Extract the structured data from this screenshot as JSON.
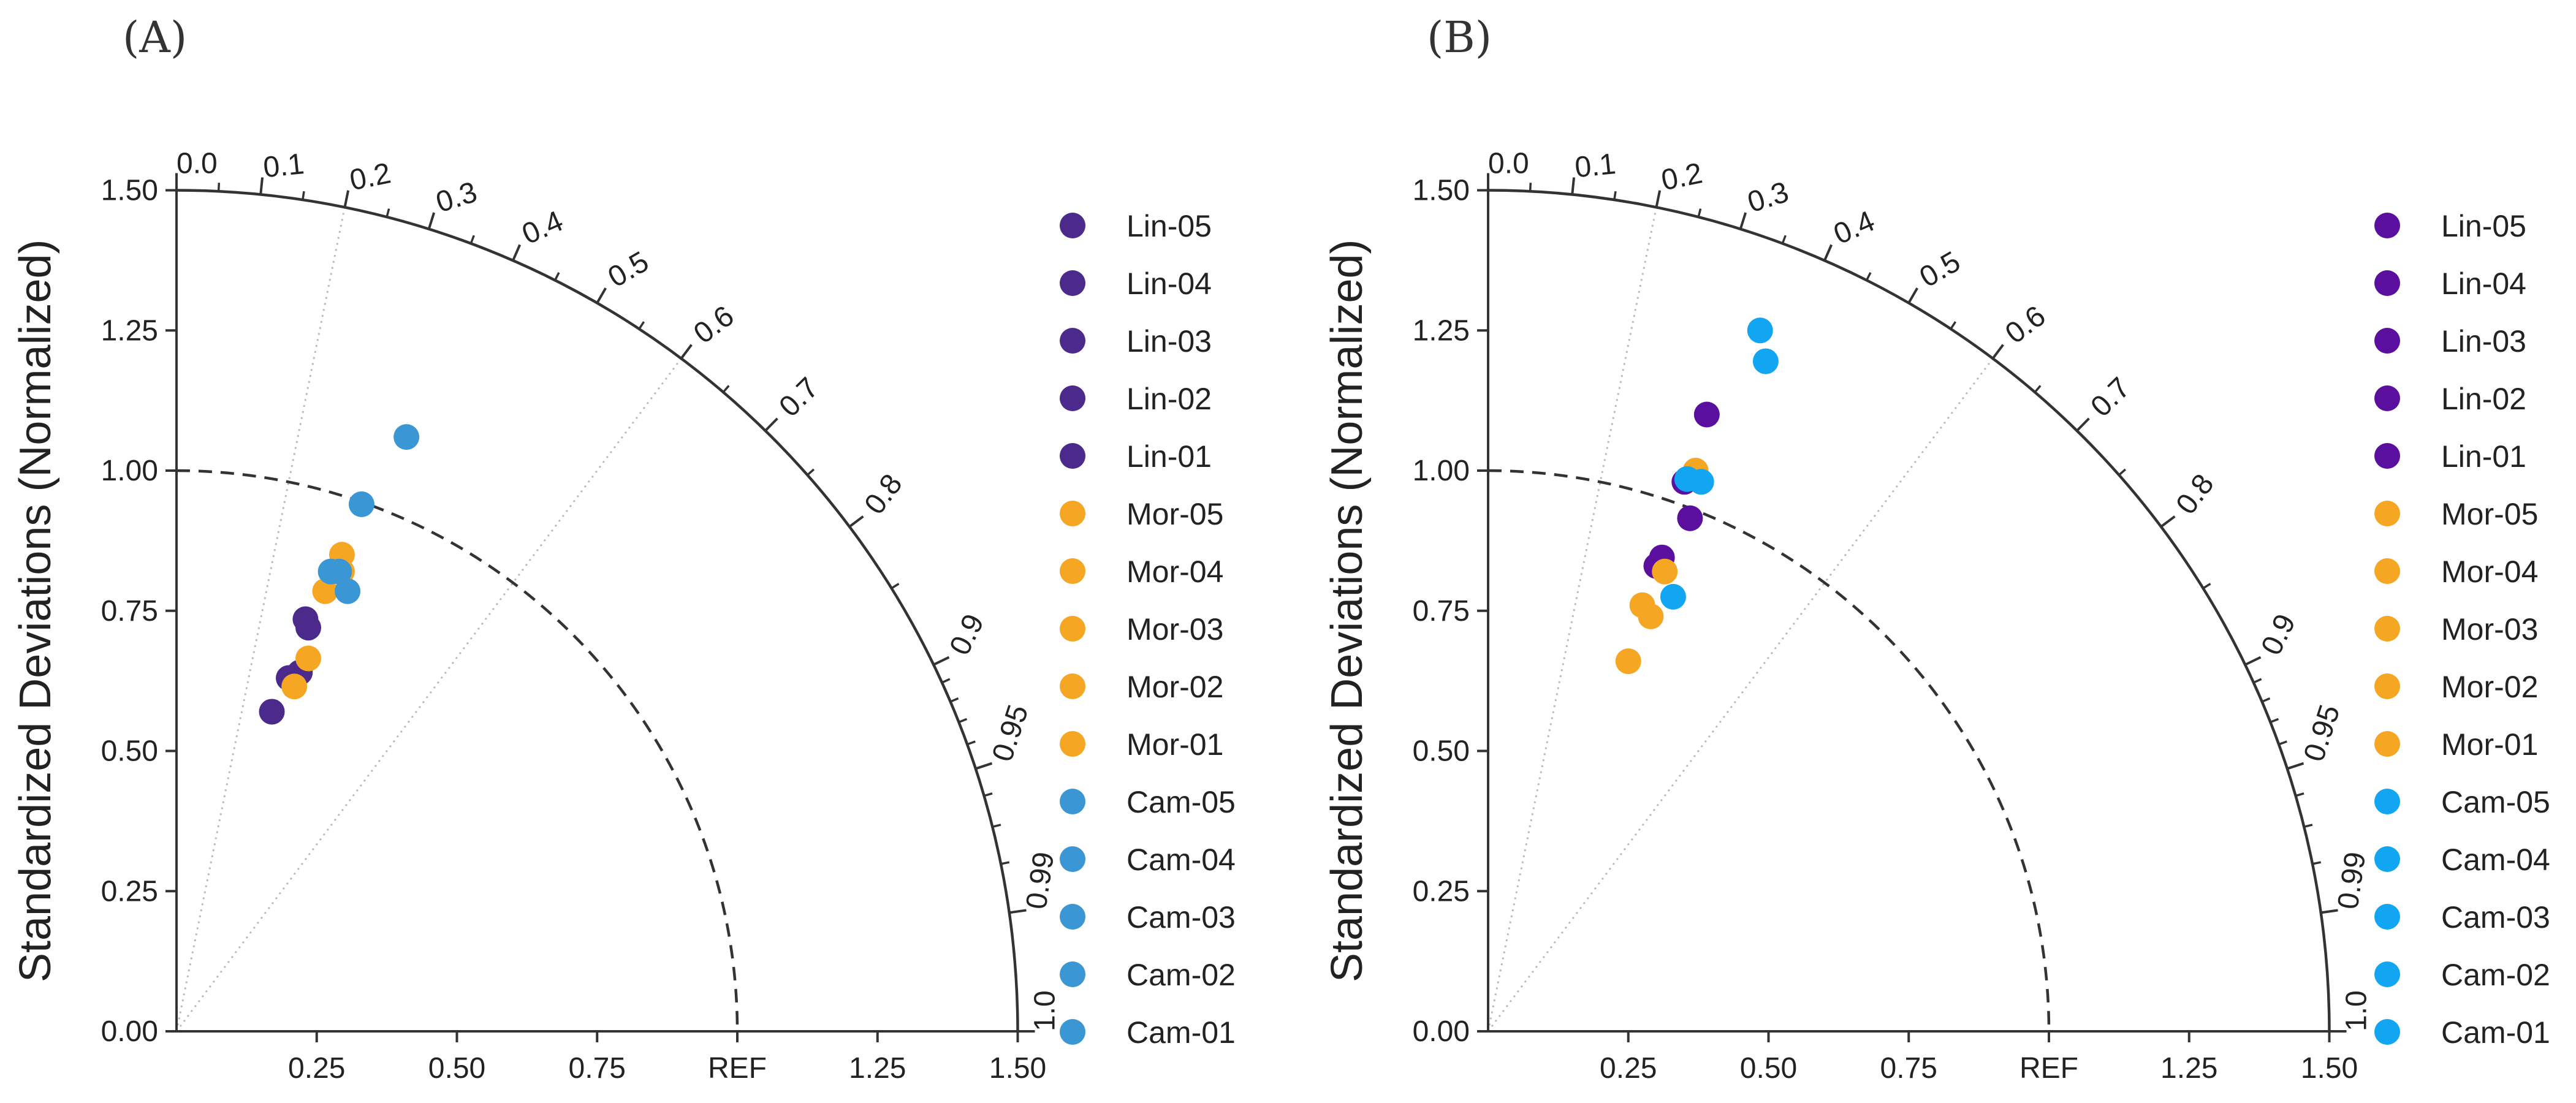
{
  "chart_data": [
    {
      "type": "scatter",
      "chart_kind": "taylor-diagram",
      "panel_label": "(A)",
      "ylabel": "Standardized Deviations (Normalized)",
      "x_ticks": [
        "0.25",
        "0.50",
        "0.75",
        "REF",
        "1.25",
        "1.50"
      ],
      "y_ticks": [
        "0.00",
        "0.25",
        "0.50",
        "0.75",
        "1.00",
        "1.25",
        "1.50"
      ],
      "sd_range": [
        0,
        1.5
      ],
      "ref_sd": 1.0,
      "correlation_labels": [
        "0.0",
        "0.1",
        "0.2",
        "0.3",
        "0.4",
        "0.5",
        "0.6",
        "0.7",
        "0.8",
        "0.9",
        "0.95",
        "0.99",
        "1.0"
      ],
      "series": [
        {
          "name": "Lin-05",
          "color": "#4b2a8c",
          "x": 0.17,
          "y": 0.57
        },
        {
          "name": "Lin-04",
          "color": "#4b2a8c",
          "x": 0.2,
          "y": 0.63
        },
        {
          "name": "Lin-03",
          "color": "#4b2a8c",
          "x": 0.22,
          "y": 0.64
        },
        {
          "name": "Lin-02",
          "color": "#4b2a8c",
          "x": 0.235,
          "y": 0.72
        },
        {
          "name": "Lin-01",
          "color": "#4b2a8c",
          "x": 0.23,
          "y": 0.735
        },
        {
          "name": "Mor-05",
          "color": "#f5a623",
          "x": 0.21,
          "y": 0.615
        },
        {
          "name": "Mor-04",
          "color": "#f5a623",
          "x": 0.235,
          "y": 0.665
        },
        {
          "name": "Mor-03",
          "color": "#f5a623",
          "x": 0.265,
          "y": 0.785
        },
        {
          "name": "Mor-02",
          "color": "#f5a623",
          "x": 0.295,
          "y": 0.82
        },
        {
          "name": "Mor-01",
          "color": "#f5a623",
          "x": 0.295,
          "y": 0.85
        },
        {
          "name": "Cam-05",
          "color": "#3b97d3",
          "x": 0.275,
          "y": 0.82
        },
        {
          "name": "Cam-04",
          "color": "#3b97d3",
          "x": 0.305,
          "y": 0.785
        },
        {
          "name": "Cam-03",
          "color": "#3b97d3",
          "x": 0.33,
          "y": 0.94
        },
        {
          "name": "Cam-02",
          "color": "#3b97d3",
          "x": 0.41,
          "y": 1.06
        },
        {
          "name": "Cam-01",
          "color": "#3b97d3",
          "x": 0.29,
          "y": 0.82
        }
      ]
    },
    {
      "type": "scatter",
      "chart_kind": "taylor-diagram",
      "panel_label": "(B)",
      "ylabel": "Standardized Deviations (Normalized)",
      "x_ticks": [
        "0.25",
        "0.50",
        "0.75",
        "REF",
        "1.25",
        "1.50"
      ],
      "y_ticks": [
        "0.00",
        "0.25",
        "0.50",
        "0.75",
        "1.00",
        "1.25",
        "1.50"
      ],
      "sd_range": [
        0,
        1.5
      ],
      "ref_sd": 1.0,
      "correlation_labels": [
        "0.0",
        "0.1",
        "0.2",
        "0.3",
        "0.4",
        "0.5",
        "0.6",
        "0.7",
        "0.8",
        "0.9",
        "0.95",
        "0.99",
        "1.0"
      ],
      "series": [
        {
          "name": "Lin-05",
          "color": "#5b0f9e",
          "x": 0.3,
          "y": 0.83
        },
        {
          "name": "Lin-04",
          "color": "#5b0f9e",
          "x": 0.31,
          "y": 0.845
        },
        {
          "name": "Lin-03",
          "color": "#5b0f9e",
          "x": 0.36,
          "y": 0.915
        },
        {
          "name": "Lin-02",
          "color": "#5b0f9e",
          "x": 0.35,
          "y": 0.98
        },
        {
          "name": "Lin-01",
          "color": "#5b0f9e",
          "x": 0.39,
          "y": 1.1
        },
        {
          "name": "Mor-05",
          "color": "#f5a623",
          "x": 0.25,
          "y": 0.66
        },
        {
          "name": "Mor-04",
          "color": "#f5a623",
          "x": 0.29,
          "y": 0.74
        },
        {
          "name": "Mor-03",
          "color": "#f5a623",
          "x": 0.275,
          "y": 0.76
        },
        {
          "name": "Mor-02",
          "color": "#f5a623",
          "x": 0.315,
          "y": 0.82
        },
        {
          "name": "Mor-01",
          "color": "#f5a623",
          "x": 0.37,
          "y": 1.0
        },
        {
          "name": "Cam-05",
          "color": "#12a6f2",
          "x": 0.33,
          "y": 0.775
        },
        {
          "name": "Cam-04",
          "color": "#12a6f2",
          "x": 0.38,
          "y": 0.98
        },
        {
          "name": "Cam-03",
          "color": "#12a6f2",
          "x": 0.485,
          "y": 1.25
        },
        {
          "name": "Cam-02",
          "color": "#12a6f2",
          "x": 0.495,
          "y": 1.195
        },
        {
          "name": "Cam-01",
          "color": "#12a6f2",
          "x": 0.355,
          "y": 0.985
        }
      ]
    }
  ]
}
